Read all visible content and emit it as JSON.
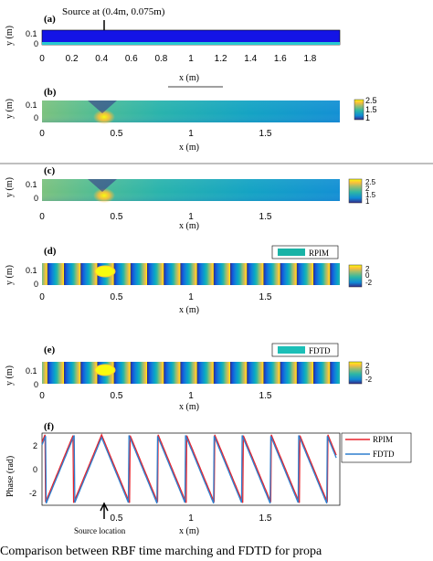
{
  "figure": {
    "panel_labels": [
      "(a)",
      "(b)",
      "(c)",
      "(d)",
      "(e)",
      "(f)"
    ],
    "source_annotation": "Source at (0.4m, 0.075m)",
    "source_location_label": "Source location",
    "caption_fragment": "Comparison between RBF time marching and FDTD for propa"
  },
  "chart_data": [
    {
      "type": "heatmap",
      "panel": "(a)",
      "xlabel": "x (m)",
      "ylabel": "y (m)",
      "xticks": [
        "0",
        "0.2",
        "0.4",
        "0.6",
        "0.8",
        "1",
        "1.2",
        "1.4",
        "1.6",
        "1.8"
      ],
      "yticks": [
        "0.1",
        "0"
      ],
      "xlim": [
        0,
        2
      ],
      "ylim": [
        0,
        0.15
      ],
      "source": [
        0.4,
        0.075
      ]
    },
    {
      "type": "heatmap",
      "panel": "(b)",
      "xlabel": "x (m)",
      "ylabel": "y (m)",
      "xticks": [
        "0",
        "0.5",
        "1",
        "1.5"
      ],
      "yticks": [
        "0.1",
        "0"
      ],
      "colorbar_ticks": [
        "2.5",
        "1.5",
        "1"
      ],
      "clim": [
        1,
        2.5
      ]
    },
    {
      "type": "heatmap",
      "panel": "(c)",
      "xlabel": "x (m)",
      "ylabel": "y (m)",
      "xticks": [
        "0",
        "0.5",
        "1",
        "1.5"
      ],
      "yticks": [
        "0.1",
        "0"
      ],
      "colorbar_ticks": [
        "2.5",
        "2",
        "1.5",
        "1"
      ],
      "clim": [
        1,
        2.5
      ]
    },
    {
      "type": "heatmap",
      "panel": "(d)",
      "legend": "RPIM",
      "xlabel": "x (m)",
      "ylabel": "y (m)",
      "xticks": [
        "0",
        "0.5",
        "1",
        "1.5"
      ],
      "yticks": [
        "0.1",
        "0"
      ],
      "colorbar_ticks": [
        "2",
        "0",
        "-2"
      ],
      "clim": [
        -2.5,
        2.5
      ]
    },
    {
      "type": "heatmap",
      "panel": "(e)",
      "legend": "FDTD",
      "xlabel": "x (m)",
      "ylabel": "y (m)",
      "xticks": [
        "0",
        "0.5",
        "1",
        "1.5"
      ],
      "yticks": [
        "0.1",
        "0"
      ],
      "colorbar_ticks": [
        "2",
        "0",
        "-2"
      ],
      "clim": [
        -2.5,
        2.5
      ]
    },
    {
      "type": "line",
      "panel": "(f)",
      "xlabel": "x (m)",
      "ylabel": "Phase (rad)",
      "xticks": [
        "0.5",
        "1",
        "1.5"
      ],
      "yticks": [
        "2",
        "0",
        "-2"
      ],
      "xlim": [
        0,
        2
      ],
      "ylim": [
        -3.3,
        3.3
      ],
      "legend_position": "right",
      "series": [
        {
          "name": "RPIM",
          "color": "#e8222b"
        },
        {
          "name": "FDTD",
          "color": "#2f7fce"
        }
      ]
    }
  ],
  "colors": {
    "parula": [
      "#352a87",
      "#0f5cdd",
      "#1481d6",
      "#06a4ca",
      "#2eb7a4",
      "#87bf77",
      "#d1bb59",
      "#fec832",
      "#f9fb0e"
    ],
    "domain_blue": "#1414e6",
    "rpim_legend_swatch": "#19b3a6",
    "fdtd_legend_swatch": "#1cbfb7"
  }
}
